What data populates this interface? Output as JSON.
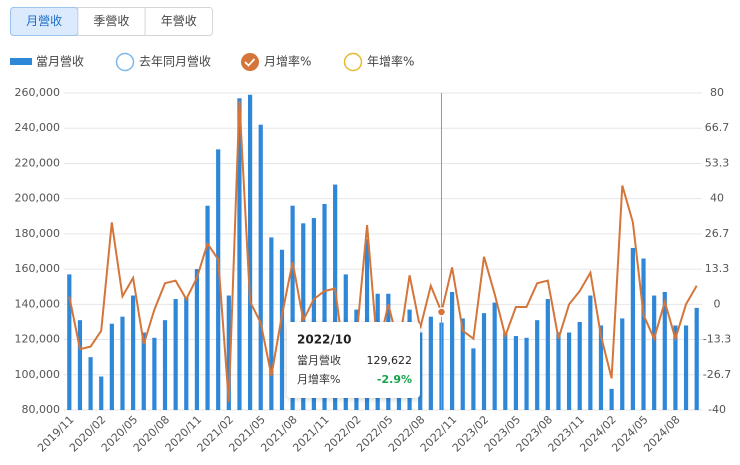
{
  "tabs": [
    "月營收",
    "季營收",
    "年營收"
  ],
  "active_tab": 0,
  "chart_data": {
    "type": "bar-line",
    "categories": [
      "2019/11",
      null,
      null,
      "2020/02",
      null,
      null,
      "2020/05",
      null,
      null,
      "2020/08",
      null,
      null,
      "2020/11",
      null,
      null,
      "2021/02",
      null,
      null,
      "2021/05",
      null,
      null,
      "2021/08",
      null,
      null,
      "2021/11",
      null,
      null,
      "2022/02",
      null,
      null,
      "2022/05",
      null,
      null,
      "2022/08",
      null,
      null,
      "2022/11",
      null,
      null,
      "2023/02",
      null,
      null,
      "2023/05",
      null,
      null,
      "2023/08",
      null,
      null,
      "2023/11",
      null,
      null,
      "2024/02",
      null,
      null,
      "2024/05",
      null,
      null,
      "2024/08",
      null,
      null
    ],
    "series": [
      {
        "name": "當月營收",
        "color": "#2f87d8",
        "kind": "bar",
        "visible": true,
        "values": [
          157000,
          131000,
          110000,
          99000,
          129000,
          133000,
          145000,
          124000,
          121000,
          131000,
          143000,
          144000,
          160000,
          196000,
          228000,
          145000,
          257000,
          259000,
          242000,
          178000,
          171000,
          196000,
          186000,
          189000,
          197000,
          208000,
          157000,
          137000,
          177000,
          146000,
          146000,
          123000,
          137000,
          124000,
          133000,
          129622,
          147000,
          132000,
          115000,
          135000,
          141000,
          124000,
          122000,
          121000,
          131000,
          143000,
          124000,
          124000,
          130000,
          145000,
          128000,
          92000,
          132000,
          172000,
          166000,
          145000,
          147000,
          128000,
          128000,
          138000
        ]
      },
      {
        "name": "去年同月營收",
        "color": "#7fb8e8",
        "kind": "bar",
        "visible": false
      },
      {
        "name": "月增率%",
        "color": "#d4753a",
        "kind": "line",
        "axis": "y2",
        "visible": true,
        "values": [
          3,
          -17,
          -16,
          -10,
          31,
          3,
          10,
          -15,
          -2,
          8,
          9,
          2,
          10,
          23,
          17,
          -37,
          77,
          1,
          -7,
          -27,
          -4,
          16,
          -6,
          2,
          5,
          6,
          -25,
          -13,
          30,
          -18,
          0,
          -16,
          11,
          -9,
          7,
          -2.9,
          14,
          -10,
          -13,
          18,
          4,
          -12,
          -1,
          -1,
          8,
          9,
          -13,
          0,
          5,
          12,
          -12,
          -28,
          45,
          31,
          -4,
          -13,
          1,
          -13,
          0,
          7
        ]
      },
      {
        "name": "年增率%",
        "color": "#e8b830",
        "kind": "line",
        "axis": "y2",
        "visible": false
      }
    ],
    "ylim": [
      80000,
      260000
    ],
    "yticks": [
      {
        "value": 80000,
        "label": "80,000"
      },
      {
        "value": 100000,
        "label": "100,000"
      },
      {
        "value": 120000,
        "label": "120,000"
      },
      {
        "value": 140000,
        "label": "140,000"
      },
      {
        "value": 160000,
        "label": "160,000"
      },
      {
        "value": 180000,
        "label": "180,000"
      },
      {
        "value": 200000,
        "label": "200,000"
      },
      {
        "value": 220000,
        "label": "220,000"
      },
      {
        "value": 240000,
        "label": "240,000"
      },
      {
        "value": 260000,
        "label": "260,000"
      }
    ],
    "y2lim": [
      -40,
      80
    ],
    "y2ticks": [
      -40,
      -26.7,
      -13.3,
      0,
      13.3,
      26.7,
      40,
      53.3,
      66.7,
      80
    ],
    "grid": true,
    "tooltip": {
      "title": "2022/10",
      "rows": [
        {
          "label": "當月營收",
          "value": "129,622"
        },
        {
          "label": "月增率%",
          "value": "-2.9%"
        }
      ]
    }
  }
}
